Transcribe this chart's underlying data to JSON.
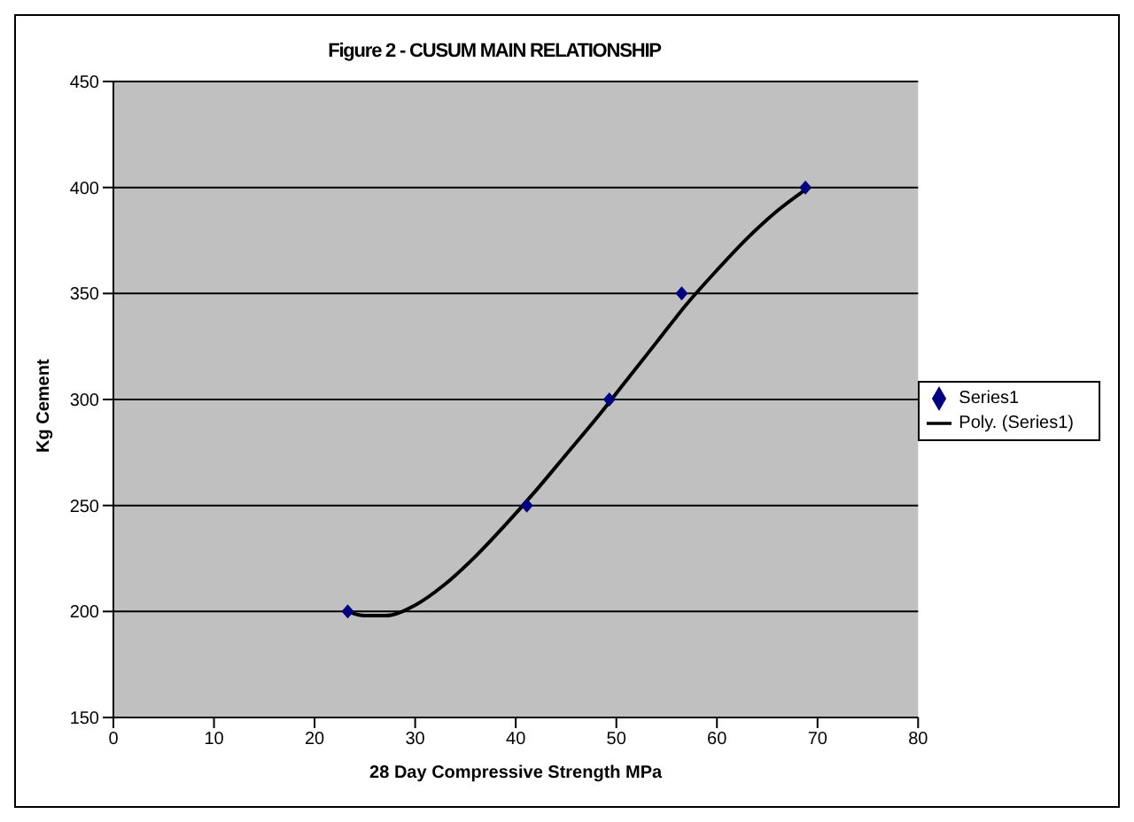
{
  "chart_data": {
    "type": "scatter",
    "title": "Figure 2 - CUSUM MAIN RELATIONSHIP",
    "xlabel": "28 Day Compressive Strength MPa",
    "ylabel": "Kg Cement",
    "series": [
      {
        "name": "Series1",
        "color": "#000080",
        "marker": "diamond",
        "x": [
          23.3,
          41.1,
          49.3,
          56.5,
          68.8
        ],
        "values": [
          200,
          250,
          300,
          350,
          400
        ]
      },
      {
        "name": "Poly. (Series1)",
        "type": "line",
        "color": "#000000",
        "marker": "none",
        "line_style": "solid",
        "x": [
          23.3,
          25,
          27,
          30,
          33,
          36,
          39,
          42,
          45,
          48,
          51,
          54,
          57,
          60,
          63,
          66,
          68.8
        ],
        "values": [
          200,
          198,
          198,
          203,
          213,
          226,
          241,
          257,
          274,
          291,
          309,
          327,
          345,
          361,
          376,
          389,
          399
        ]
      }
    ],
    "xlim": [
      0,
      80
    ],
    "xticks": [
      0,
      10,
      20,
      30,
      40,
      50,
      60,
      70,
      80
    ],
    "ylim": [
      150,
      450
    ],
    "yticks": [
      150,
      200,
      250,
      300,
      350,
      400,
      450
    ],
    "grid": "y",
    "legend": "right"
  }
}
